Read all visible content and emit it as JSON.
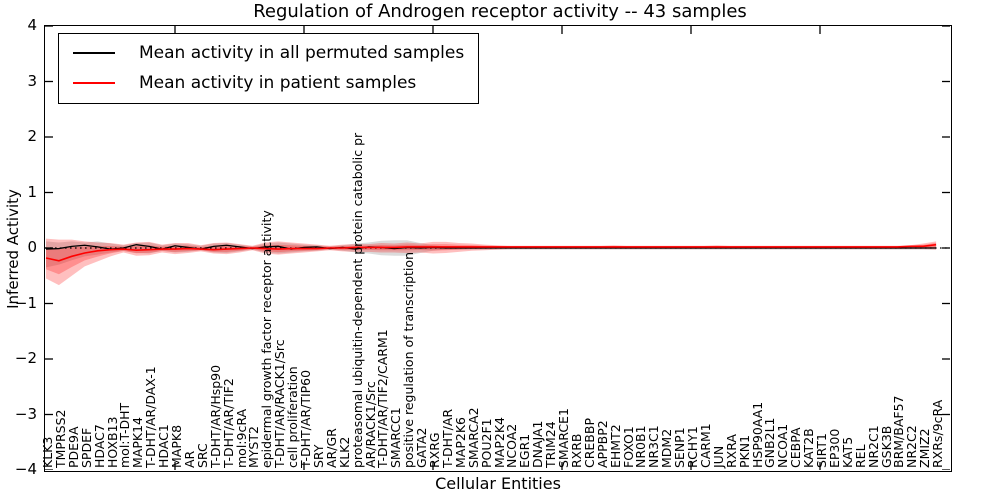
{
  "chart_data": {
    "type": "line",
    "title": "Regulation of Androgen receptor activity -- 43 samples",
    "xlabel": "Cellular Entities",
    "ylabel": "Inferred Activity",
    "ylim": [
      -4,
      4
    ],
    "yticks": [
      4,
      3,
      2,
      1,
      0,
      -1,
      -2,
      -3,
      -4
    ],
    "grid": false,
    "legend_position": "upper left",
    "zero_line": "dotted black at y=0",
    "categories": [
      "KLK3",
      "TMPRSS2",
      "PDE9A",
      "SPDEF",
      "HDAC7",
      "HOXB13",
      "mol:T-DHT",
      "MAPK14",
      "T-DHT/AR/DAX-1",
      "HDAC1",
      "MAPK8",
      "AR",
      "SRC",
      "T-DHT/AR/Hsp90",
      "T-DHT/AR/TIF2",
      "mol:9cRA",
      "MYST2",
      "epidermal growth factor receptor activity",
      "T-DHT/AR/RACK1/Src",
      "cell proliferation",
      "T-DHT/AR/TIP60",
      "SRY",
      "AR/GR",
      "KLK2",
      "proteasomal ubiquitin-dependent protein catabolic pr",
      "AR/RACK1/Src",
      "T-DHT/AR/TIF2/CARM1",
      "SMARCC1",
      "positive regulation of transcription",
      "GATA2",
      "RXRG",
      "T-DHT/AR",
      "MAP2K6",
      "SMARCA2",
      "POU2F1",
      "MAP2K4",
      "NCOA2",
      "EGR1",
      "DNAJA1",
      "TRIM24",
      "SMARCE1",
      "RXRB",
      "CREBBP",
      "APPBP2",
      "EHMT2",
      "FOXO1",
      "NR0B1",
      "NR3C1",
      "MDM2",
      "SENP1",
      "RCHY1",
      "CARM1",
      "JUN",
      "RXRA",
      "PKN1",
      "HSP90AA1",
      "GNB2L1",
      "NCOA1",
      "CEBPA",
      "KAT2B",
      "SIRT1",
      "EP300",
      "KAT5",
      "REL",
      "NR2C1",
      "GSK3B",
      "BRM/BAF57",
      "NR2C2",
      "ZMIZ2",
      "RXRs/9cRA"
    ],
    "series": [
      {
        "name": "Mean activity in all permuted samples",
        "color": "#000000",
        "values": [
          -0.02,
          -0.01,
          0.03,
          0.05,
          0.02,
          -0.02,
          0.0,
          0.06,
          0.03,
          -0.02,
          0.04,
          0.01,
          -0.02,
          0.03,
          0.05,
          0.02,
          -0.01,
          0.02,
          0.03,
          -0.02,
          0.01,
          0.02,
          -0.01,
          0.01,
          -0.02,
          0.02,
          0.01,
          -0.01,
          0.01,
          0.0,
          0.01,
          0.0,
          0.0,
          0.0,
          0.0,
          0.0,
          0.0,
          0.0,
          0.0,
          0.0,
          0.0,
          0.0,
          0.0,
          0.0,
          0.0,
          0.0,
          0.0,
          0.0,
          0.0,
          0.0,
          0.0,
          0.0,
          0.0,
          0.0,
          0.0,
          0.0,
          0.0,
          0.0,
          0.0,
          0.0,
          0.0,
          0.0,
          0.0,
          0.0,
          0.0,
          0.0,
          0.0,
          0.0,
          0.0,
          0.0
        ],
        "band_upper": [
          0.12,
          0.1,
          0.12,
          0.1,
          0.12,
          0.08,
          0.05,
          0.09,
          0.1,
          0.05,
          0.08,
          0.07,
          0.04,
          0.08,
          0.09,
          0.06,
          0.03,
          0.08,
          0.1,
          0.08,
          0.06,
          0.05,
          0.03,
          0.05,
          0.08,
          0.1,
          0.13,
          0.14,
          0.14,
          0.09,
          0.05,
          0.03,
          0.03,
          0.03,
          0.03,
          0.03,
          0.03,
          0.03,
          0.03,
          0.03,
          0.03,
          0.03,
          0.03,
          0.03,
          0.03,
          0.03,
          0.03,
          0.03,
          0.03,
          0.03,
          0.03,
          0.03,
          0.03,
          0.03,
          0.03,
          0.03,
          0.03,
          0.03,
          0.03,
          0.03,
          0.03,
          0.03,
          0.03,
          0.03,
          0.03,
          0.03,
          0.03,
          0.03,
          0.03,
          0.03
        ],
        "band_lower": [
          -0.35,
          -0.3,
          -0.22,
          -0.15,
          -0.12,
          -0.08,
          -0.05,
          -0.09,
          -0.1,
          -0.05,
          -0.08,
          -0.07,
          -0.04,
          -0.08,
          -0.09,
          -0.06,
          -0.03,
          -0.08,
          -0.1,
          -0.08,
          -0.06,
          -0.05,
          -0.03,
          -0.05,
          -0.08,
          -0.1,
          -0.13,
          -0.14,
          -0.14,
          -0.09,
          -0.05,
          -0.03,
          -0.03,
          -0.03,
          -0.03,
          -0.03,
          -0.03,
          -0.03,
          -0.03,
          -0.03,
          -0.03,
          -0.03,
          -0.03,
          -0.03,
          -0.03,
          -0.03,
          -0.03,
          -0.03,
          -0.03,
          -0.03,
          -0.03,
          -0.03,
          -0.03,
          -0.03,
          -0.03,
          -0.03,
          -0.03,
          -0.03,
          -0.03,
          -0.03,
          -0.03,
          -0.03,
          -0.03,
          -0.03,
          -0.03,
          -0.03,
          -0.03,
          -0.03,
          -0.03,
          -0.03
        ]
      },
      {
        "name": "Mean activity in patient samples",
        "color": "#ff0000",
        "values": [
          -0.18,
          -0.23,
          -0.15,
          -0.09,
          -0.05,
          -0.03,
          -0.02,
          -0.04,
          -0.03,
          -0.02,
          -0.02,
          -0.01,
          -0.02,
          -0.03,
          -0.02,
          -0.01,
          0.0,
          -0.01,
          -0.02,
          -0.01,
          -0.01,
          -0.01,
          0.0,
          0.0,
          0.01,
          0.01,
          0.01,
          0.01,
          0.02,
          0.02,
          0.02,
          0.02,
          0.02,
          0.02,
          0.02,
          0.02,
          0.02,
          0.02,
          0.02,
          0.02,
          0.02,
          0.02,
          0.02,
          0.02,
          0.02,
          0.02,
          0.02,
          0.02,
          0.02,
          0.02,
          0.02,
          0.02,
          0.02,
          0.02,
          0.02,
          0.02,
          0.02,
          0.02,
          0.02,
          0.02,
          0.02,
          0.02,
          0.02,
          0.02,
          0.02,
          0.02,
          0.02,
          0.03,
          0.03,
          0.06
        ],
        "band_upper": [
          0.17,
          0.15,
          0.15,
          0.12,
          0.1,
          0.09,
          0.06,
          0.1,
          0.11,
          0.06,
          0.09,
          0.09,
          0.05,
          0.09,
          0.1,
          0.07,
          0.04,
          0.1,
          0.12,
          0.1,
          0.08,
          0.06,
          0.04,
          0.06,
          0.07,
          0.07,
          0.09,
          0.08,
          0.1,
          0.08,
          0.11,
          0.11,
          0.09,
          0.08,
          0.06,
          0.05,
          0.04,
          0.04,
          0.04,
          0.04,
          0.04,
          0.04,
          0.04,
          0.04,
          0.05,
          0.04,
          0.04,
          0.04,
          0.04,
          0.04,
          0.04,
          0.04,
          0.05,
          0.04,
          0.04,
          0.04,
          0.04,
          0.04,
          0.04,
          0.04,
          0.04,
          0.04,
          0.04,
          0.04,
          0.04,
          0.04,
          0.04,
          0.05,
          0.08,
          0.12
        ],
        "band_lower": [
          -0.55,
          -0.67,
          -0.5,
          -0.33,
          -0.24,
          -0.15,
          -0.08,
          -0.14,
          -0.13,
          -0.08,
          -0.11,
          -0.09,
          -0.06,
          -0.1,
          -0.11,
          -0.08,
          -0.04,
          -0.1,
          -0.12,
          -0.1,
          -0.08,
          -0.06,
          -0.04,
          -0.06,
          -0.07,
          -0.07,
          -0.08,
          -0.08,
          -0.09,
          -0.08,
          -0.1,
          -0.09,
          -0.07,
          -0.05,
          -0.04,
          -0.03,
          -0.02,
          -0.02,
          -0.02,
          -0.02,
          -0.02,
          -0.02,
          -0.02,
          -0.02,
          -0.02,
          -0.02,
          -0.02,
          -0.02,
          -0.02,
          -0.02,
          -0.02,
          -0.02,
          -0.02,
          -0.02,
          -0.02,
          -0.02,
          -0.02,
          -0.02,
          -0.02,
          -0.02,
          -0.02,
          -0.02,
          -0.02,
          -0.02,
          -0.02,
          -0.02,
          -0.02,
          -0.02,
          -0.02,
          -0.03
        ]
      }
    ]
  },
  "colors": {
    "permuted_line": "#000000",
    "permuted_band": "rgba(0,0,0,0.14)",
    "patient_line": "#ff0000",
    "patient_band": "rgba(255,0,0,0.25)",
    "axis": "#000000",
    "background": "#ffffff"
  }
}
